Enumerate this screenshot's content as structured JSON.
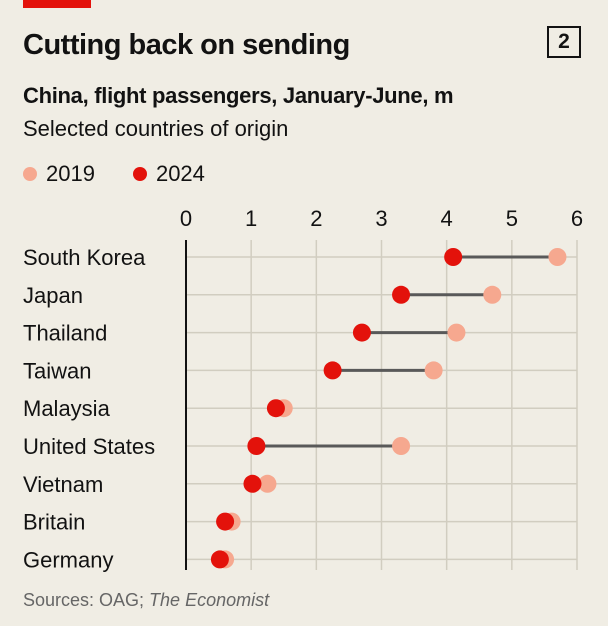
{
  "header": {
    "title": "Cutting back on sending",
    "chart_number": "2",
    "subtitle": "China, flight passengers, January-June, m",
    "subsubtitle": "Selected countries of origin"
  },
  "source": {
    "prefix": "Sources: OAG; ",
    "italic": "The Economist"
  },
  "colors": {
    "accent": "#e3120b",
    "series_2019": "#f6a88f",
    "series_2024": "#e3120b",
    "connector": "#595959",
    "grid": "#d1cdc0",
    "background": "#f0ede4"
  },
  "chart_data": {
    "type": "dumbbell",
    "title": "Cutting back on sending",
    "xlim": [
      0,
      6
    ],
    "x_ticks": [
      "0",
      "1",
      "2",
      "3",
      "4",
      "5",
      "6"
    ],
    "categories": [
      "South Korea",
      "Japan",
      "Thailand",
      "Taiwan",
      "Malaysia",
      "United States",
      "Vietnam",
      "Britain",
      "Germany"
    ],
    "series": [
      {
        "name": "2019",
        "values": [
          5.7,
          4.7,
          4.15,
          3.8,
          1.5,
          3.3,
          1.25,
          0.7,
          0.6
        ]
      },
      {
        "name": "2024",
        "values": [
          4.1,
          3.3,
          2.7,
          2.25,
          1.38,
          1.08,
          1.02,
          0.6,
          0.52
        ]
      }
    ],
    "grid": true,
    "legend_position": "top-left"
  }
}
